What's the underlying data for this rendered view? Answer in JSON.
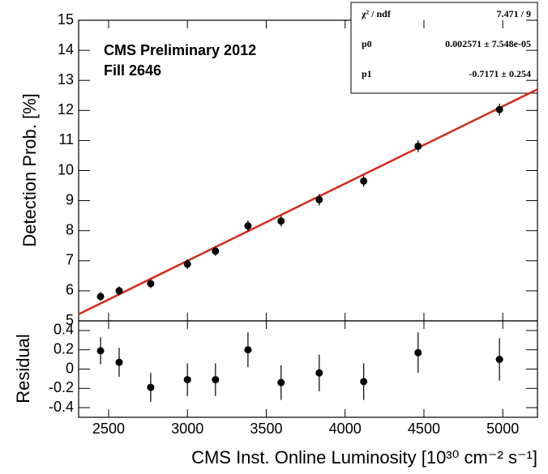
{
  "chart_data": [
    {
      "type": "scatter",
      "ylabel": "Detection Prob. [%]",
      "annotations": [
        "CMS Preliminary 2012",
        "Fill 2646"
      ],
      "x": [
        2449,
        2567,
        2767,
        3000,
        3178,
        3384,
        3594,
        3836,
        4118,
        4463,
        4979
      ],
      "values": [
        5.81,
        6.0,
        6.24,
        6.89,
        7.32,
        8.16,
        8.32,
        9.03,
        9.65,
        10.81,
        12.03
      ],
      "errors": [
        0.15,
        0.15,
        0.15,
        0.16,
        0.16,
        0.18,
        0.18,
        0.19,
        0.19,
        0.2,
        0.2
      ],
      "color": "#000000",
      "fit_color": "#d42a1c",
      "stats": [
        {
          "name": "χ² / ndf",
          "label": "7.471 / 9"
        },
        {
          "name": "p0",
          "value": 0.002571,
          "error": 7.548e-05,
          "label": "0.002571 ± 7.548e-05"
        },
        {
          "name": "p1",
          "value": -0.7171,
          "error": 0.254,
          "label": "-0.7171 ± 0.254"
        }
      ],
      "xlim": [
        2310,
        5220
      ],
      "xticks": [
        2500,
        3000,
        3500,
        4000,
        4500,
        5000
      ],
      "ylim": [
        5,
        15
      ],
      "yticks": [
        5,
        6,
        7,
        8,
        9,
        10,
        11,
        12,
        13,
        14,
        15
      ]
    },
    {
      "type": "scatter",
      "ylabel": "Residual",
      "xlabel": "CMS Inst. Online Luminosity [10³⁰ cm⁻² s⁻¹]",
      "x": [
        2449,
        2567,
        2767,
        3000,
        3178,
        3384,
        3594,
        3836,
        4118,
        4463,
        4979
      ],
      "values": [
        0.19,
        0.07,
        -0.19,
        -0.11,
        -0.11,
        0.2,
        -0.14,
        -0.04,
        -0.13,
        0.17,
        0.1
      ],
      "errors": [
        0.14,
        0.15,
        0.15,
        0.17,
        0.17,
        0.18,
        0.18,
        0.19,
        0.19,
        0.21,
        0.22
      ],
      "color": "#000000",
      "xlim": [
        2310,
        5220
      ],
      "xticks": [
        2500,
        3000,
        3500,
        4000,
        4500,
        5000
      ],
      "ylim": [
        -0.5,
        0.5
      ],
      "yticks": [
        0.4,
        0.2,
        0,
        -0.2,
        -0.4
      ]
    }
  ]
}
